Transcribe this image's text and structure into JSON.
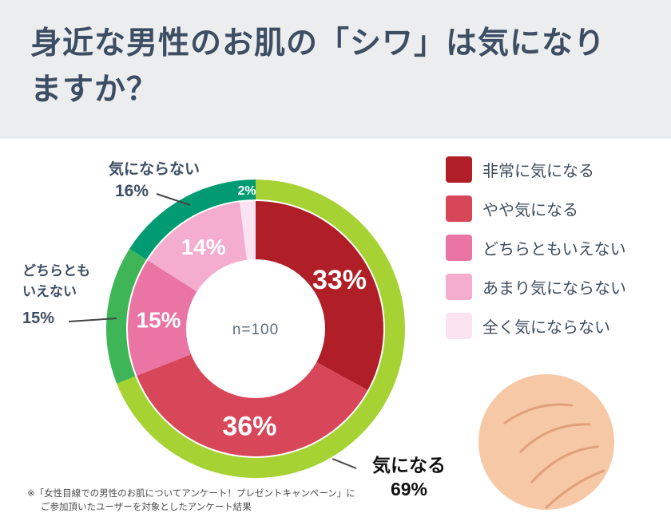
{
  "header": {
    "title": "身近な男性のお肌の「シワ」は気になりますか？"
  },
  "chart_data": {
    "type": "pie",
    "subtype": "donut-with-outer-group-ring",
    "title": "身近な男性のお肌の「シワ」は気になりますか？",
    "center_label": "n=100",
    "sample_size": 100,
    "legend_position": "right",
    "series": [
      {
        "label": "非常に気になる",
        "value": 33,
        "color": "#b01f28"
      },
      {
        "label": "やや気になる",
        "value": 36,
        "color": "#d84659"
      },
      {
        "label": "どちらともいえない",
        "value": 15,
        "color": "#ea74a4"
      },
      {
        "label": "あまり気にならない",
        "value": 14,
        "color": "#f4accf"
      },
      {
        "label": "全く気にならない",
        "value": 2,
        "color": "#fce3f2"
      }
    ],
    "outer_ring": [
      {
        "label": "気になる",
        "value": 69,
        "color": "#a6d333"
      },
      {
        "label": "どちらともいえない",
        "value": 15,
        "color": "#3eb657"
      },
      {
        "label": "気にならない",
        "value": 16,
        "color": "#009b72"
      }
    ],
    "callouts": {
      "not_concerned": {
        "label": "気にならない",
        "value": "16%"
      },
      "neither": {
        "label": "どちらとも\nいえない",
        "value": "15%"
      },
      "concerned": {
        "label": "気になる",
        "value": "69%"
      }
    }
  },
  "legend": {
    "items": [
      {
        "label": "非常に気になる",
        "color": "#b01f28"
      },
      {
        "label": "やや気になる",
        "color": "#d84659"
      },
      {
        "label": "どちらともいえない",
        "color": "#ea74a4"
      },
      {
        "label": "あまり気にならない",
        "color": "#f4accf"
      },
      {
        "label": "全く気にならない",
        "color": "#fce3f2"
      }
    ]
  },
  "footnote": {
    "line1": "※「女性目線での男性のお肌についてアンケート！プレゼントキャンペーン」に",
    "line2": "ご参加頂いたユーザーを対象としたアンケート結果"
  }
}
